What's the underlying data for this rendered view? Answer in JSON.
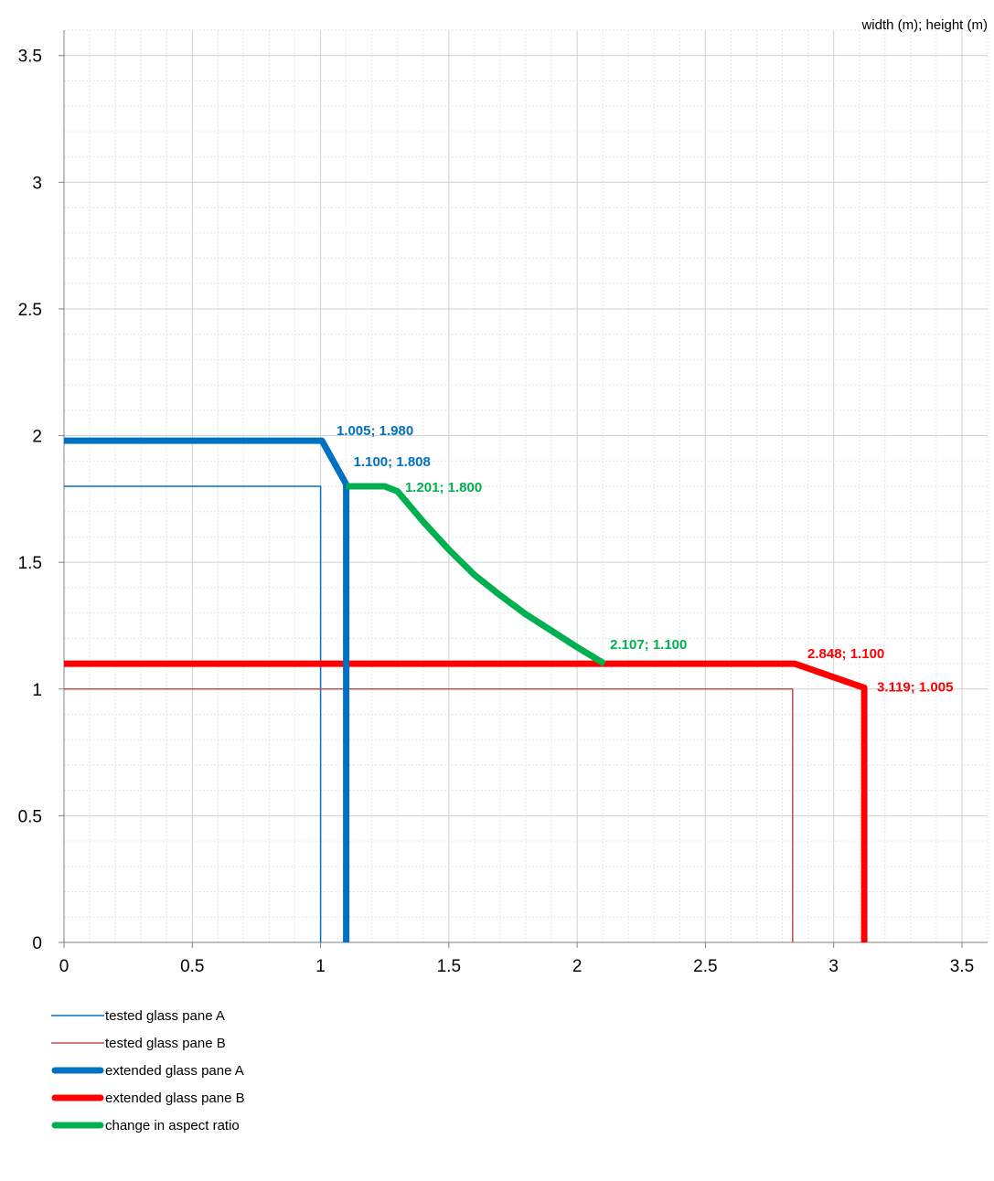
{
  "chart_data": {
    "type": "line",
    "title": "",
    "axis_title": "width (m); height (m)",
    "xlim": [
      0,
      3.6
    ],
    "ylim": [
      0,
      3.6
    ],
    "x_ticks": [
      0,
      0.5,
      1,
      1.5,
      2,
      2.5,
      3,
      3.5
    ],
    "y_ticks": [
      0,
      0.5,
      1,
      1.5,
      2,
      2.5,
      3,
      3.5
    ],
    "x_tick_labels": [
      "0",
      "0.5",
      "1",
      "1.5",
      "2",
      "2.5",
      "3",
      "3.5"
    ],
    "y_tick_labels": [
      "0",
      "0.5",
      "1",
      "1.5",
      "2",
      "2.5",
      "3",
      "3.5"
    ],
    "grid": true,
    "minor_grid": true,
    "legend_position": "bottom-left",
    "series": [
      {
        "name": "tested glass pane A",
        "color": "#0070C0",
        "style": "thin",
        "points": [
          [
            0,
            1.8
          ],
          [
            1.0,
            1.8
          ],
          [
            1.0,
            0
          ]
        ]
      },
      {
        "name": "tested glass pane B",
        "color": "#C0504D",
        "style": "thin",
        "points": [
          [
            0,
            1.0
          ],
          [
            2.84,
            1.0
          ],
          [
            2.84,
            0
          ]
        ]
      },
      {
        "name": "extended glass pane A",
        "color": "#0070C0",
        "style": "thick",
        "points": [
          [
            0,
            1.98
          ],
          [
            1.005,
            1.98
          ],
          [
            1.1,
            1.808
          ],
          [
            1.1,
            0
          ]
        ]
      },
      {
        "name": "extended glass pane B",
        "color": "#FF0000",
        "style": "thick",
        "points": [
          [
            0,
            1.1
          ],
          [
            2.848,
            1.1
          ],
          [
            3.119,
            1.005
          ],
          [
            3.119,
            0
          ]
        ]
      },
      {
        "name": "change in aspect ratio",
        "color": "#00B050",
        "style": "thick",
        "points": [
          [
            1.1,
            1.8
          ],
          [
            1.201,
            1.8
          ],
          [
            1.25,
            1.8
          ],
          [
            1.3,
            1.78
          ],
          [
            1.4,
            1.66
          ],
          [
            1.5,
            1.55
          ],
          [
            1.6,
            1.45
          ],
          [
            1.7,
            1.37
          ],
          [
            1.8,
            1.295
          ],
          [
            1.9,
            1.23
          ],
          [
            2.0,
            1.165
          ],
          [
            2.107,
            1.1
          ]
        ]
      }
    ],
    "annotations": [
      {
        "text": "1.005; 1.980",
        "x": 1.005,
        "y": 1.98,
        "color": "#0070C0"
      },
      {
        "text": "1.100; 1.808",
        "x": 1.1,
        "y": 1.808,
        "color": "#0070C0"
      },
      {
        "text": "1.201; 1.800",
        "x": 1.201,
        "y": 1.8,
        "color": "#00B050"
      },
      {
        "text": "2.107; 1.100",
        "x": 2.107,
        "y": 1.1,
        "color": "#00B050"
      },
      {
        "text": "2.848; 1.100",
        "x": 2.848,
        "y": 1.1,
        "color": "#FF0000"
      },
      {
        "text": "3.119; 1.005",
        "x": 3.119,
        "y": 1.005,
        "color": "#FF0000"
      }
    ]
  }
}
